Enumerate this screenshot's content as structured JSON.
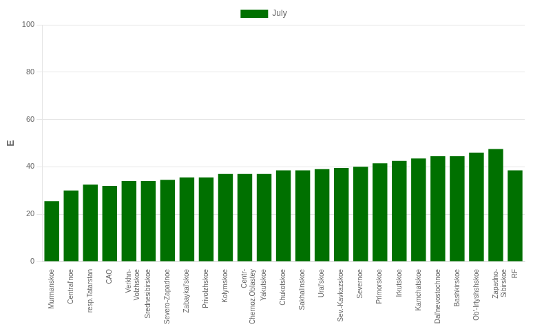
{
  "chart_data": {
    "type": "bar",
    "ylabel": "E",
    "categories": [
      "Murmanskoe",
      "Central'noe",
      "resp.Tatarstan",
      "CAO",
      "Verkhn-\nVolzhskoe",
      "Srednesibirskoe",
      "Severo-Zapadnoe",
      "Zabaykal'skoe",
      "Privolzhskoe",
      "Kolymskoe",
      "Centr-\nChernoz.Oblastey",
      "Yakutskoe",
      "Chukotskoe",
      "Sakhalinskoe",
      "Ural'skoe",
      "Sev.-Kavkazskoe",
      "Severnoe",
      "Primorskoe",
      "Irkutskoe",
      "Kamchatskoe",
      "Dal'nevostochnoe",
      "Bashkirskoe",
      "Ob'-Irtyshshskoe",
      "Zapadno-\nSibirskoe",
      "RF"
    ],
    "series": [
      {
        "name": "July",
        "color": "#007000",
        "values": [
          25.5,
          30.0,
          32.5,
          32.0,
          34.0,
          34.0,
          34.5,
          35.5,
          35.5,
          37.0,
          37.0,
          37.0,
          38.5,
          38.5,
          39.0,
          39.5,
          40.0,
          41.5,
          42.5,
          43.5,
          44.5,
          44.5,
          46.0,
          47.5,
          38.5
        ]
      }
    ],
    "ylim": [
      0,
      100
    ],
    "yticks": [
      0,
      20,
      40,
      60,
      80,
      100
    ],
    "grid": true,
    "legend": "top"
  }
}
